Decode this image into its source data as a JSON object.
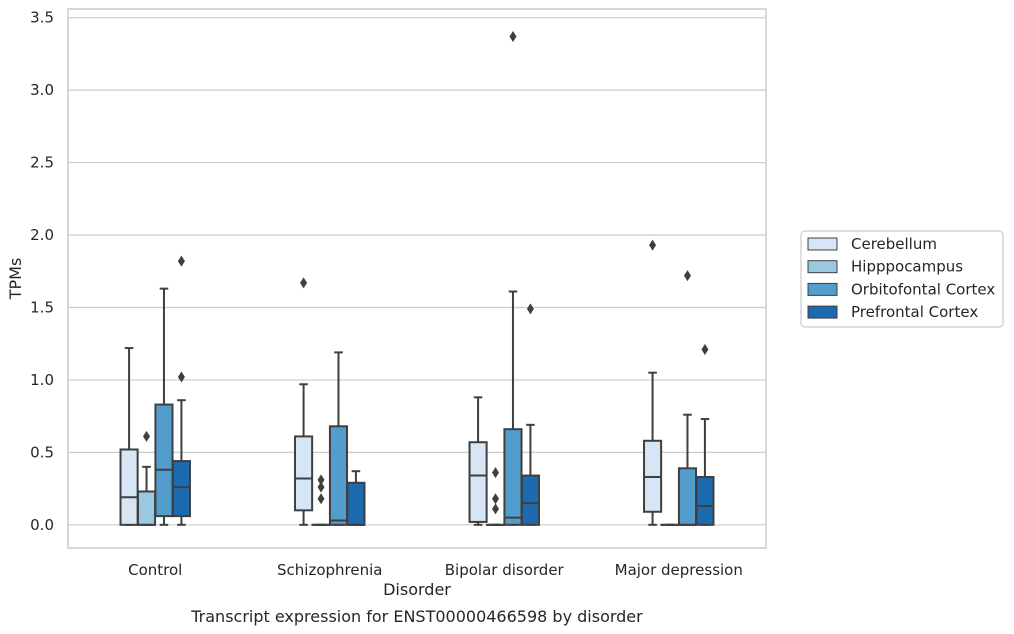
{
  "caption": "Transcript expression for ENST00000466598 by disorder",
  "chart_data": {
    "type": "box",
    "xlabel": "Disorder",
    "ylabel": "TPMs",
    "ylim": [
      -0.16,
      3.56
    ],
    "yticks": [
      "0.0",
      "0.5",
      "1.0",
      "1.5",
      "2.0",
      "2.5",
      "3.0",
      "3.5"
    ],
    "ytick_values": [
      0,
      0.5,
      1.0,
      1.5,
      2.0,
      2.5,
      3.0,
      3.5
    ],
    "grid": "horizontal",
    "legend_position": "right",
    "categories": [
      "Control",
      "Schizophrenia",
      "Bipolar disorder",
      "Major depression"
    ],
    "series": [
      {
        "name": "Cerebellum",
        "color": "#d6e6f4",
        "boxes": [
          {
            "whisker_low": 0.0,
            "q1": 0.0,
            "median": 0.19,
            "q3": 0.52,
            "whisker_high": 1.22,
            "outliers": []
          },
          {
            "whisker_low": 0.0,
            "q1": 0.1,
            "median": 0.32,
            "q3": 0.61,
            "whisker_high": 0.97,
            "outliers": [
              1.67
            ]
          },
          {
            "whisker_low": 0.0,
            "q1": 0.02,
            "median": 0.34,
            "q3": 0.57,
            "whisker_high": 0.88,
            "outliers": []
          },
          {
            "whisker_low": 0.0,
            "q1": 0.09,
            "median": 0.33,
            "q3": 0.58,
            "whisker_high": 1.05,
            "outliers": [
              1.93
            ]
          }
        ]
      },
      {
        "name": "Hipppocampus",
        "color": "#9ac8e0",
        "boxes": [
          {
            "whisker_low": 0.0,
            "q1": 0.0,
            "median": 0.0,
            "q3": 0.23,
            "whisker_high": 0.4,
            "outliers": [
              0.61
            ]
          },
          {
            "whisker_low": 0.0,
            "q1": 0.0,
            "median": 0.0,
            "q3": 0.0,
            "whisker_high": 0.0,
            "outliers": [
              0.31,
              0.26,
              0.18
            ]
          },
          {
            "whisker_low": 0.0,
            "q1": 0.0,
            "median": 0.0,
            "q3": 0.0,
            "whisker_high": 0.0,
            "outliers": [
              0.36,
              0.18,
              0.11
            ]
          },
          {
            "whisker_low": 0.0,
            "q1": 0.0,
            "median": 0.0,
            "q3": 0.0,
            "whisker_high": 0.0,
            "outliers": []
          }
        ]
      },
      {
        "name": "Orbitofontal Cortex",
        "color": "#529dcc",
        "boxes": [
          {
            "whisker_low": 0.0,
            "q1": 0.06,
            "median": 0.38,
            "q3": 0.83,
            "whisker_high": 1.63,
            "outliers": []
          },
          {
            "whisker_low": 0.0,
            "q1": 0.0,
            "median": 0.03,
            "q3": 0.68,
            "whisker_high": 1.19,
            "outliers": []
          },
          {
            "whisker_low": 0.0,
            "q1": 0.0,
            "median": 0.05,
            "q3": 0.66,
            "whisker_high": 1.61,
            "outliers": [
              3.37
            ]
          },
          {
            "whisker_low": 0.0,
            "q1": 0.0,
            "median": 0.0,
            "q3": 0.39,
            "whisker_high": 0.76,
            "outliers": [
              1.72
            ]
          }
        ]
      },
      {
        "name": "Prefrontal Cortex",
        "color": "#1c6aaf",
        "boxes": [
          {
            "whisker_low": 0.0,
            "q1": 0.06,
            "median": 0.26,
            "q3": 0.44,
            "whisker_high": 0.86,
            "outliers": [
              1.02,
              1.82
            ]
          },
          {
            "whisker_low": 0.0,
            "q1": 0.0,
            "median": 0.0,
            "q3": 0.29,
            "whisker_high": 0.37,
            "outliers": []
          },
          {
            "whisker_low": 0.0,
            "q1": 0.0,
            "median": 0.15,
            "q3": 0.34,
            "whisker_high": 0.69,
            "outliers": [
              1.49
            ]
          },
          {
            "whisker_low": 0.0,
            "q1": 0.0,
            "median": 0.13,
            "q3": 0.33,
            "whisker_high": 0.73,
            "outliers": [
              1.21
            ]
          }
        ]
      }
    ]
  }
}
